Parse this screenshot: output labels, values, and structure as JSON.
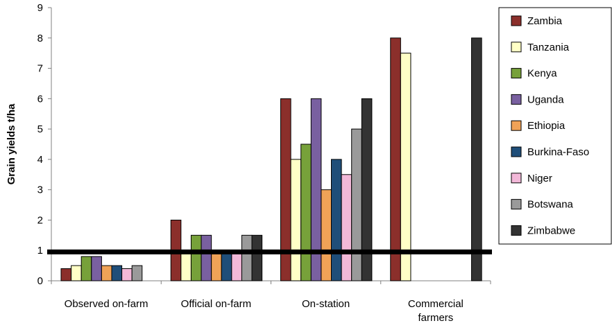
{
  "chart_data": {
    "type": "bar",
    "ylabel": "Grain yields t/ha",
    "ylim": [
      0,
      9
    ],
    "yticks": [
      "0",
      "1",
      "2",
      "3",
      "4",
      "5",
      "6",
      "7",
      "8",
      "9"
    ],
    "grid": false,
    "legend_position": "right",
    "categories": [
      {
        "lines": [
          "Observed on-farm"
        ]
      },
      {
        "lines": [
          "Official on-farm"
        ]
      },
      {
        "lines": [
          "On-station"
        ]
      },
      {
        "lines": [
          "Commercial",
          "farmers"
        ]
      }
    ],
    "series": [
      {
        "name": "Zambia",
        "color": "#8b2f2b",
        "values": [
          0.4,
          2.0,
          6.0,
          8.0
        ]
      },
      {
        "name": "Tanzania",
        "color": "#ffffc6",
        "values": [
          0.5,
          1.0,
          4.0,
          7.5
        ]
      },
      {
        "name": "Kenya",
        "color": "#77a13a",
        "values": [
          0.8,
          1.5,
          4.5,
          0
        ]
      },
      {
        "name": "Uganda",
        "color": "#7960a0",
        "values": [
          0.8,
          1.5,
          6.0,
          0
        ]
      },
      {
        "name": "Ethiopia",
        "color": "#f0a257",
        "values": [
          0.5,
          1.0,
          3.0,
          0
        ]
      },
      {
        "name": "Burkina-Faso",
        "color": "#1f4e79",
        "values": [
          0.5,
          1.0,
          4.0,
          0
        ]
      },
      {
        "name": "Niger",
        "color": "#f2b8d8",
        "values": [
          0.4,
          1.0,
          3.5,
          0
        ]
      },
      {
        "name": "Botswana",
        "color": "#9a9a9a",
        "values": [
          0.5,
          1.5,
          5.0,
          0
        ]
      },
      {
        "name": "Zimbabwe",
        "color": "#333333",
        "values": [
          0,
          1.5,
          6.0,
          8.0
        ]
      }
    ],
    "reference_line": {
      "value": 0.95,
      "color": "#000000"
    }
  }
}
